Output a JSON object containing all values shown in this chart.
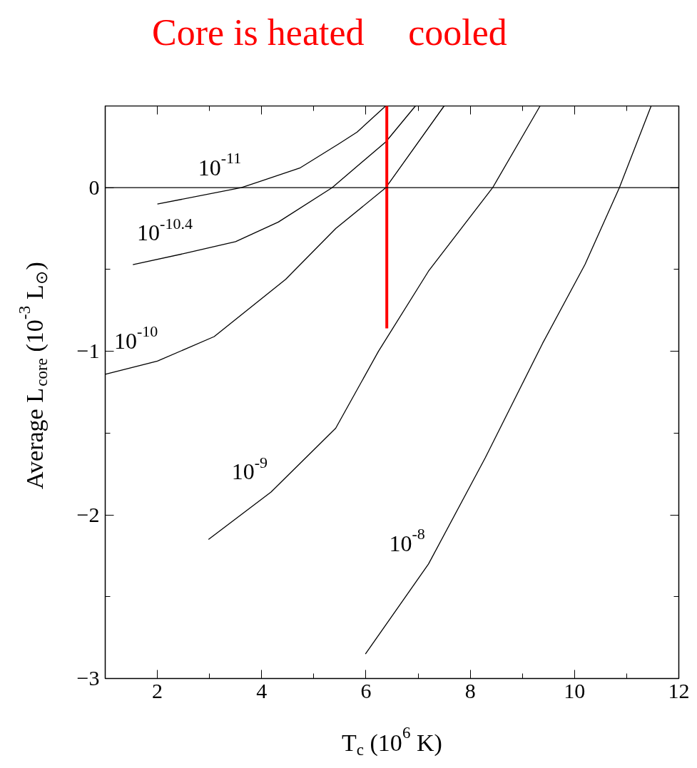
{
  "chart_data": {
    "type": "line",
    "xlabel": "T$_{c}$ (10$^{6}$ K)",
    "ylabel": "Average L$_{core}$ (10$^{-3}$ L$_{⊙}$)",
    "xlim": [
      1,
      12
    ],
    "ylim": [
      -3,
      0.5
    ],
    "xticks": [
      {
        "value": 1,
        "label": null
      },
      2,
      {
        "value": 3,
        "label": null
      },
      4,
      {
        "value": 5,
        "label": null
      },
      6,
      {
        "value": 7,
        "label": null
      },
      8,
      {
        "value": 9,
        "label": null
      },
      10,
      {
        "value": 11,
        "label": null
      },
      12
    ],
    "yticks": [
      -3,
      {
        "value": -2.5,
        "label": null
      },
      -2,
      {
        "value": -1.5,
        "label": null
      },
      -1,
      {
        "value": -0.5,
        "label": null
      },
      0,
      {
        "value": 0.5,
        "label": null
      }
    ],
    "grid": false,
    "marker": "none",
    "line_style": "solid",
    "series": [
      {
        "name": "10$^{-11}$",
        "color": "#000000",
        "x": [
          2.0,
          3.61,
          4.73,
          5.49,
          5.83,
          6.38
        ],
        "values": [
          -0.1,
          0.0,
          0.12,
          0.27,
          0.34,
          0.5
        ]
      },
      {
        "name": "10$^{-10.4}$",
        "color": "#000000",
        "x": [
          1.53,
          2.55,
          3.5,
          4.32,
          5.35,
          6.38,
          6.95
        ],
        "values": [
          -0.47,
          -0.4,
          -0.33,
          -0.21,
          0.0,
          0.28,
          0.5
        ]
      },
      {
        "name": "10$^{-10}$",
        "color": "#000000",
        "x": [
          1.0,
          2.0,
          3.09,
          4.46,
          5.42,
          6.38,
          7.5
        ],
        "values": [
          -1.14,
          -1.06,
          -0.91,
          -0.56,
          -0.25,
          0.0,
          0.5
        ]
      },
      {
        "name": "10$^{-9}$",
        "color": "#000000",
        "x": [
          2.98,
          4.18,
          5.42,
          6.24,
          7.2,
          8.43,
          9.34
        ],
        "values": [
          -2.15,
          -1.86,
          -1.47,
          -1.0,
          -0.51,
          0.0,
          0.5
        ]
      },
      {
        "name": "10$^{-8}$",
        "color": "#000000",
        "x": [
          5.99,
          7.2,
          8.29,
          9.39,
          10.2,
          10.86,
          11.47
        ],
        "values": [
          -2.85,
          -2.3,
          -1.65,
          -0.95,
          -0.47,
          0.0,
          0.5
        ]
      },
      {
        "color": "#ff0000",
        "x": [
          6.4,
          6.4
        ],
        "values": [
          -0.86,
          0.5
        ]
      }
    ],
    "ref_lines": [
      {
        "axis": "y",
        "value": 0,
        "color": "#000000"
      }
    ],
    "annotations": [
      "Core is heated",
      "cooled"
    ]
  }
}
